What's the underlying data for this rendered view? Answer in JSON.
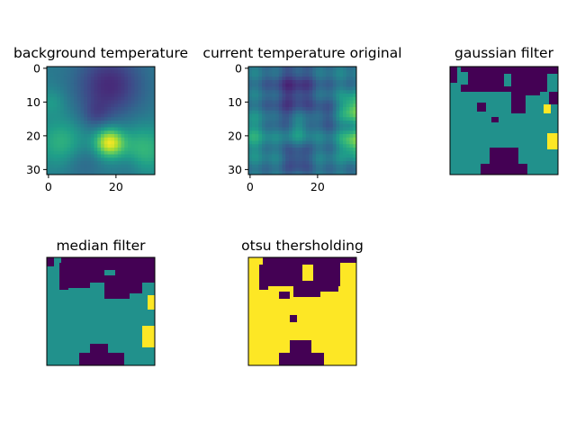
{
  "chart_data": [
    {
      "type": "heatmap",
      "title": "background temperature",
      "colormap": "viridis",
      "grid_size": [
        32,
        32
      ],
      "x_ticks": [
        "0",
        "20"
      ],
      "y_ticks": [
        "0",
        "10",
        "20",
        "30"
      ],
      "xlim": [
        0,
        31
      ],
      "ylim": [
        31,
        0
      ],
      "axes_visible": true
    },
    {
      "type": "heatmap",
      "title": "current temperature original",
      "colormap": "viridis",
      "grid_size": [
        32,
        32
      ],
      "x_ticks": [
        "0",
        "20"
      ],
      "y_ticks": [
        "0",
        "10",
        "20",
        "30"
      ],
      "xlim": [
        0,
        31
      ],
      "ylim": [
        31,
        0
      ],
      "axes_visible": true
    },
    {
      "type": "heatmap",
      "title": "gaussian filter",
      "colormap": "viridis",
      "levels": 3,
      "axes_visible": false
    },
    {
      "type": "heatmap",
      "title": "median filter",
      "colormap": "viridis",
      "levels": 3,
      "axes_visible": false
    },
    {
      "type": "heatmap",
      "title": "otsu thersholding",
      "colormap": "viridis",
      "levels": 2,
      "axes_visible": false
    }
  ]
}
